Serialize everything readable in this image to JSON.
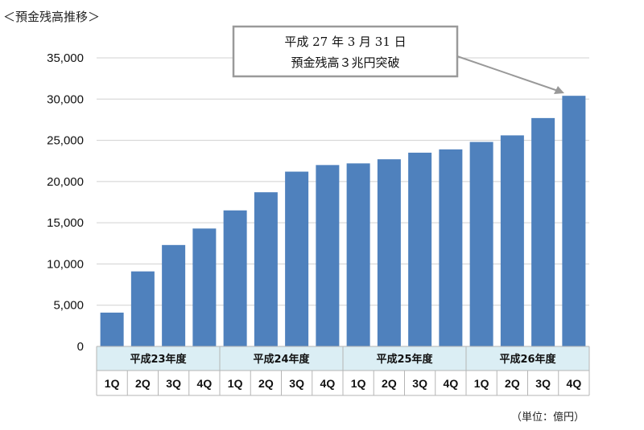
{
  "chart_data": {
    "type": "bar",
    "title": "＜預金残高推移＞",
    "unit_label": "（単位：億円）",
    "ylim": [
      0,
      35000
    ],
    "yticks": [
      "0",
      "5,000",
      "10,000",
      "15,000",
      "20,000",
      "25,000",
      "30,000",
      "35,000"
    ],
    "grid": true,
    "bar_color": "#4f81bd",
    "group_header_color": "#dbeef4",
    "groups": [
      {
        "label": "平成23年度",
        "quarters": [
          "1Q",
          "2Q",
          "3Q",
          "4Q"
        ]
      },
      {
        "label": "平成24年度",
        "quarters": [
          "1Q",
          "2Q",
          "3Q",
          "4Q"
        ]
      },
      {
        "label": "平成25年度",
        "quarters": [
          "1Q",
          "2Q",
          "3Q",
          "4Q"
        ]
      },
      {
        "label": "平成26年度",
        "quarters": [
          "1Q",
          "2Q",
          "3Q",
          "4Q"
        ]
      }
    ],
    "values": [
      4100,
      9100,
      12300,
      14300,
      16500,
      18700,
      21200,
      22000,
      22200,
      22700,
      23500,
      23900,
      24800,
      25600,
      27700,
      30400
    ],
    "annotation": {
      "line1": "平成 27 年 3 月 31 日",
      "line2": "預金残高３兆円突破",
      "target_index": 15
    }
  }
}
